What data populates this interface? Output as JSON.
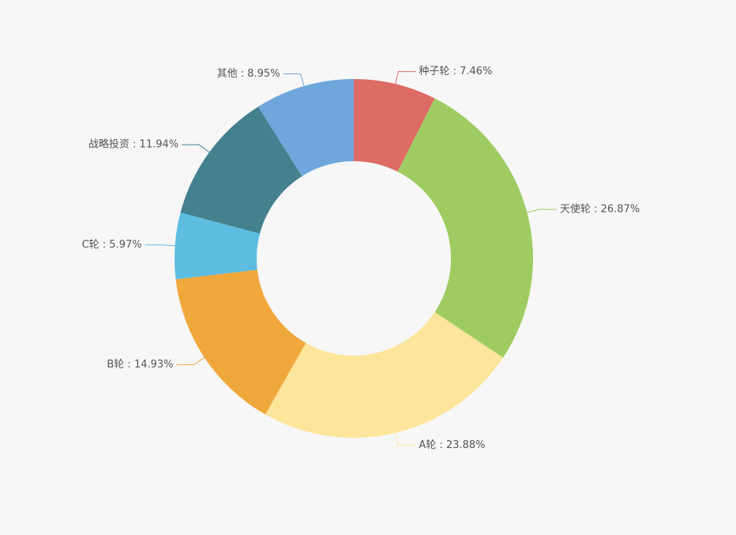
{
  "chart_data": {
    "type": "donut",
    "values": [
      7.46,
      26.87,
      23.88,
      14.93,
      5.97,
      11.94,
      8.95
    ],
    "value_labels": [
      "种子轮 : 7.46%",
      "天使轮 : 26.87%",
      "A轮 : 23.88%",
      "B轮 : 14.93%",
      "C轮 : 5.97%",
      "战略投资 : 11.94%",
      "其他 : 8.95%"
    ],
    "colors": [
      "#dd6b66",
      "#9fcc62",
      "#fde59b",
      "#f0a83c",
      "#5dbde0",
      "#44818f",
      "#6fa7dc"
    ]
  }
}
